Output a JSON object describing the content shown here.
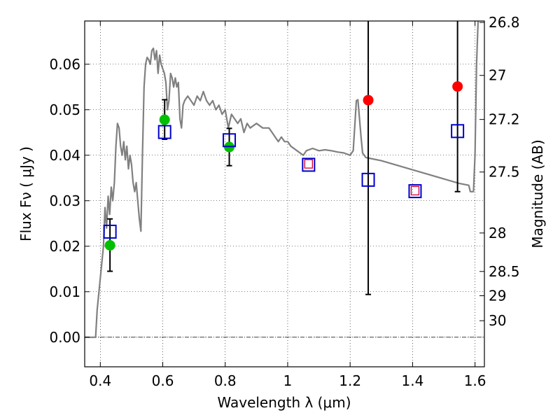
{
  "chart_data": {
    "type": "scatter",
    "xlabel": "Wavelength  λ (μm)",
    "ylabel": "Flux  Fν  ( μJy )",
    "y2label": "Magnitude (AB)",
    "xlim": [
      0.35,
      1.63
    ],
    "ylim": [
      -0.0065,
      0.0695
    ],
    "grid": true,
    "x_ticks": [
      {
        "value": 0.4,
        "label": "0.4"
      },
      {
        "value": 0.6,
        "label": "0.6"
      },
      {
        "value": 0.8,
        "label": "0.8"
      },
      {
        "value": 1.0,
        "label": "1"
      },
      {
        "value": 1.2,
        "label": "1.2"
      },
      {
        "value": 1.4,
        "label": "1.4"
      },
      {
        "value": 1.6,
        "label": "1.6"
      }
    ],
    "y_ticks": [
      {
        "value": 0.0,
        "label": "0.00"
      },
      {
        "value": 0.01,
        "label": "0.01"
      },
      {
        "value": 0.02,
        "label": "0.02"
      },
      {
        "value": 0.03,
        "label": "0.03"
      },
      {
        "value": 0.04,
        "label": "0.04"
      },
      {
        "value": 0.05,
        "label": "0.05"
      },
      {
        "value": 0.06,
        "label": "0.06"
      }
    ],
    "y2_ticks": [
      {
        "value": 26.8,
        "label": "26.8"
      },
      {
        "value": 27.0,
        "label": "27"
      },
      {
        "value": 27.2,
        "label": "27.2"
      },
      {
        "value": 27.5,
        "label": "27.5"
      },
      {
        "value": 28.0,
        "label": "28"
      },
      {
        "value": 28.5,
        "label": "28.5"
      },
      {
        "value": 29.0,
        "label": "29"
      },
      {
        "value": 30.0,
        "label": "30"
      }
    ],
    "colors": {
      "template": "#808080",
      "green": "#00c000",
      "red": "#ff0000",
      "model_box": "#0000cc",
      "upper_box": "#cc0033",
      "error": "#000000"
    },
    "template_spectrum": [
      [
        0.35,
        0.0
      ],
      [
        0.38,
        0.0
      ],
      [
        0.385,
        0.0
      ],
      [
        0.39,
        0.006
      ],
      [
        0.4,
        0.013
      ],
      [
        0.41,
        0.02
      ],
      [
        0.415,
        0.0285
      ],
      [
        0.42,
        0.024
      ],
      [
        0.425,
        0.031
      ],
      [
        0.43,
        0.027
      ],
      [
        0.435,
        0.033
      ],
      [
        0.44,
        0.03
      ],
      [
        0.445,
        0.034
      ],
      [
        0.45,
        0.042
      ],
      [
        0.455,
        0.047
      ],
      [
        0.46,
        0.046
      ],
      [
        0.465,
        0.042
      ],
      [
        0.47,
        0.04
      ],
      [
        0.475,
        0.043
      ],
      [
        0.48,
        0.039
      ],
      [
        0.485,
        0.042
      ],
      [
        0.49,
        0.037
      ],
      [
        0.495,
        0.04
      ],
      [
        0.5,
        0.038
      ],
      [
        0.505,
        0.034
      ],
      [
        0.51,
        0.032
      ],
      [
        0.515,
        0.034
      ],
      [
        0.52,
        0.03
      ],
      [
        0.525,
        0.026
      ],
      [
        0.53,
        0.0233
      ],
      [
        0.535,
        0.04
      ],
      [
        0.54,
        0.055
      ],
      [
        0.545,
        0.06
      ],
      [
        0.55,
        0.0615
      ],
      [
        0.555,
        0.061
      ],
      [
        0.56,
        0.06
      ],
      [
        0.565,
        0.063
      ],
      [
        0.57,
        0.0635
      ],
      [
        0.575,
        0.061
      ],
      [
        0.58,
        0.063
      ],
      [
        0.585,
        0.058
      ],
      [
        0.59,
        0.062
      ],
      [
        0.595,
        0.06
      ],
      [
        0.6,
        0.059
      ],
      [
        0.605,
        0.058
      ],
      [
        0.61,
        0.056
      ],
      [
        0.615,
        0.05
      ],
      [
        0.62,
        0.052
      ],
      [
        0.625,
        0.058
      ],
      [
        0.63,
        0.057
      ],
      [
        0.635,
        0.055
      ],
      [
        0.64,
        0.057
      ],
      [
        0.645,
        0.055
      ],
      [
        0.65,
        0.056
      ],
      [
        0.655,
        0.048
      ],
      [
        0.66,
        0.046
      ],
      [
        0.665,
        0.051
      ],
      [
        0.67,
        0.052
      ],
      [
        0.68,
        0.053
      ],
      [
        0.69,
        0.052
      ],
      [
        0.7,
        0.051
      ],
      [
        0.71,
        0.053
      ],
      [
        0.72,
        0.052
      ],
      [
        0.73,
        0.054
      ],
      [
        0.74,
        0.052
      ],
      [
        0.75,
        0.051
      ],
      [
        0.76,
        0.052
      ],
      [
        0.77,
        0.05
      ],
      [
        0.78,
        0.051
      ],
      [
        0.79,
        0.049
      ],
      [
        0.8,
        0.05
      ],
      [
        0.81,
        0.046
      ],
      [
        0.82,
        0.049
      ],
      [
        0.83,
        0.048
      ],
      [
        0.84,
        0.047
      ],
      [
        0.85,
        0.048
      ],
      [
        0.86,
        0.045
      ],
      [
        0.87,
        0.047
      ],
      [
        0.88,
        0.046
      ],
      [
        0.9,
        0.047
      ],
      [
        0.92,
        0.046
      ],
      [
        0.94,
        0.046
      ],
      [
        0.95,
        0.045
      ],
      [
        0.96,
        0.044
      ],
      [
        0.97,
        0.043
      ],
      [
        0.98,
        0.044
      ],
      [
        0.99,
        0.043
      ],
      [
        1.0,
        0.043
      ],
      [
        1.01,
        0.042
      ],
      [
        1.03,
        0.041
      ],
      [
        1.05,
        0.04
      ],
      [
        1.06,
        0.041
      ],
      [
        1.08,
        0.0415
      ],
      [
        1.1,
        0.041
      ],
      [
        1.12,
        0.0412
      ],
      [
        1.14,
        0.041
      ],
      [
        1.16,
        0.0407
      ],
      [
        1.18,
        0.0405
      ],
      [
        1.2,
        0.04
      ],
      [
        1.21,
        0.041
      ],
      [
        1.22,
        0.052
      ],
      [
        1.225,
        0.0522
      ],
      [
        1.23,
        0.048
      ],
      [
        1.235,
        0.044
      ],
      [
        1.24,
        0.0405
      ],
      [
        1.25,
        0.0395
      ],
      [
        1.3,
        0.0388
      ],
      [
        1.35,
        0.0378
      ],
      [
        1.4,
        0.0368
      ],
      [
        1.45,
        0.0358
      ],
      [
        1.5,
        0.0348
      ],
      [
        1.55,
        0.0338
      ],
      [
        1.58,
        0.0334
      ],
      [
        1.585,
        0.032
      ],
      [
        1.595,
        0.032
      ],
      [
        1.6,
        0.04
      ],
      [
        1.605,
        0.06
      ],
      [
        1.61,
        0.07
      ]
    ],
    "green_points": [
      {
        "x": 0.431,
        "y": 0.0202
      },
      {
        "x": 0.606,
        "y": 0.0478
      },
      {
        "x": 0.813,
        "y": 0.0418
      }
    ],
    "red_points": [
      {
        "x": 1.258,
        "y": 0.0521
      },
      {
        "x": 1.544,
        "y": 0.0551
      }
    ],
    "error_bars": [
      {
        "x": 0.431,
        "low": 0.0145,
        "high": 0.026
      },
      {
        "x": 0.606,
        "low": 0.0435,
        "high": 0.0522
      },
      {
        "x": 0.813,
        "low": 0.0377,
        "high": 0.0459
      },
      {
        "x": 1.258,
        "low": 0.0094,
        "high": 0.0695
      },
      {
        "x": 1.544,
        "low": 0.032,
        "high": 0.0695
      }
    ],
    "model_boxes": [
      {
        "x": 0.431,
        "y": 0.0232
      },
      {
        "x": 0.606,
        "y": 0.0451
      },
      {
        "x": 0.813,
        "y": 0.0433
      },
      {
        "x": 1.067,
        "y": 0.0379
      },
      {
        "x": 1.258,
        "y": 0.0346
      },
      {
        "x": 1.408,
        "y": 0.0321
      },
      {
        "x": 1.544,
        "y": 0.0453
      }
    ],
    "upper_limit_boxes": [
      {
        "x": 1.067,
        "y": 0.0381
      },
      {
        "x": 1.408,
        "y": 0.0322
      }
    ]
  }
}
